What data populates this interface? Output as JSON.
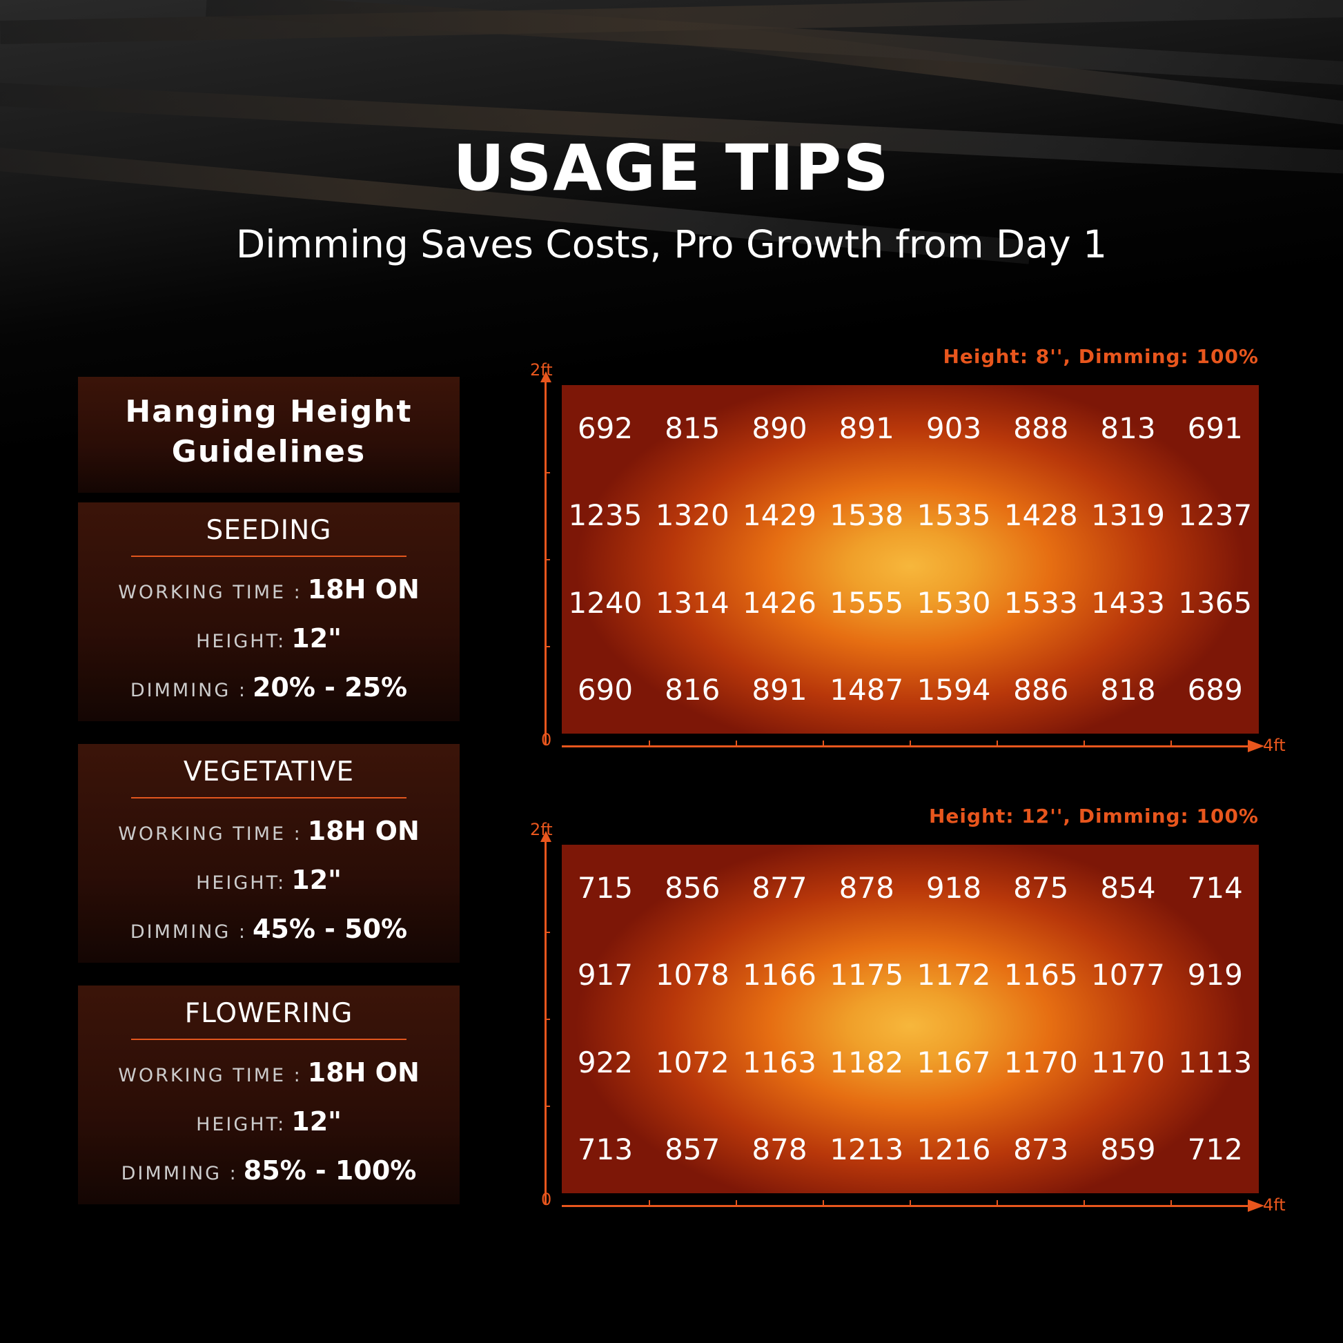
{
  "header": {
    "title": "USAGE TIPS",
    "subtitle": "Dimming Saves Costs, Pro Growth from Day 1"
  },
  "guidelines": {
    "title": "Hanging Height Guidelines",
    "stages": [
      {
        "name": "SEEDING",
        "rows": [
          {
            "label": "WORKING TIME :",
            "value": "18H ON"
          },
          {
            "label": "HEIGHT:",
            "value": "12\""
          },
          {
            "label": "DIMMING :",
            "value": "20% - 25%"
          }
        ]
      },
      {
        "name": "VEGETATIVE",
        "rows": [
          {
            "label": "WORKING TIME :",
            "value": "18H ON"
          },
          {
            "label": "HEIGHT:",
            "value": "12\""
          },
          {
            "label": "DIMMING :",
            "value": "45% - 50%"
          }
        ]
      },
      {
        "name": "FLOWERING",
        "rows": [
          {
            "label": "WORKING TIME :",
            "value": "18H ON"
          },
          {
            "label": "HEIGHT:",
            "value": "12\""
          },
          {
            "label": "DIMMING :",
            "value": "85% - 100%"
          }
        ]
      }
    ]
  },
  "maps": [
    {
      "caption": "Height: 8'', Dimming: 100%",
      "y_top": "2ft",
      "origin": "0",
      "x_end": "4ft",
      "rows": [
        [
          692,
          815,
          890,
          891,
          903,
          888,
          813,
          691
        ],
        [
          1235,
          1320,
          1429,
          1538,
          1535,
          1428,
          1319,
          1237
        ],
        [
          1240,
          1314,
          1426,
          1555,
          1530,
          1533,
          1433,
          1365
        ],
        [
          690,
          816,
          891,
          1487,
          1594,
          886,
          818,
          689
        ]
      ]
    },
    {
      "caption": "Height: 12'', Dimming: 100%",
      "y_top": "2ft",
      "origin": "0",
      "x_end": "4ft",
      "rows": [
        [
          715,
          856,
          877,
          878,
          918,
          875,
          854,
          714
        ],
        [
          917,
          1078,
          1166,
          1175,
          1172,
          1165,
          1077,
          919
        ],
        [
          922,
          1072,
          1163,
          1182,
          1167,
          1170,
          1170,
          1113
        ],
        [
          713,
          857,
          878,
          1213,
          1216,
          873,
          859,
          712
        ]
      ]
    }
  ]
}
